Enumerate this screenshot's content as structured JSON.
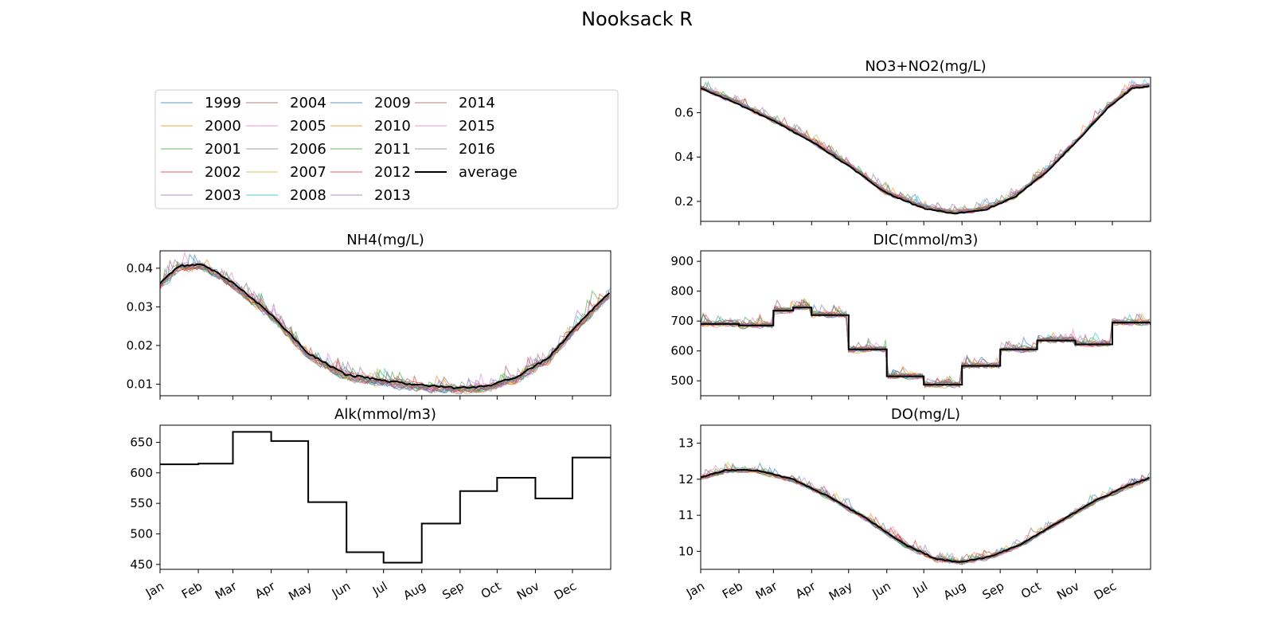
{
  "figure": {
    "title": "Nooksack R"
  },
  "legend": {
    "entries": [
      "1999",
      "2000",
      "2001",
      "2002",
      "2003",
      "2004",
      "2005",
      "2006",
      "2007",
      "2008",
      "2009",
      "2010",
      "2011",
      "2012",
      "2013",
      "2014",
      "2015",
      "2016",
      "average"
    ],
    "colors": [
      "#1f77b4",
      "#ff7f0e",
      "#2ca02c",
      "#d62728",
      "#9467bd",
      "#8c564b",
      "#e377c2",
      "#7f7f7f",
      "#bcbd22",
      "#17becf",
      "#1f77b4",
      "#ff7f0e",
      "#2ca02c",
      "#d62728",
      "#9467bd",
      "#8c564b",
      "#e377c2",
      "#7f7f7f",
      "#000000"
    ],
    "placement": "top-left panel"
  },
  "chart_data": [
    {
      "id": "no3",
      "type": "line",
      "title": "NO3+NO2(mg/L)",
      "xticks": [
        "Jan",
        "Feb",
        "Mar",
        "Apr",
        "May",
        "Jun",
        "Jul",
        "Aug",
        "Sep",
        "Oct",
        "Nov",
        "Dec"
      ],
      "xtick_labels_shown": false,
      "ylim": [
        0.11,
        0.76
      ],
      "yticks": [
        {
          "v": 0.2,
          "label": "0.2"
        },
        {
          "v": 0.4,
          "label": "0.4"
        },
        {
          "v": 0.6,
          "label": "0.6"
        }
      ],
      "average": [
        [
          0,
          0.71
        ],
        [
          30,
          0.64
        ],
        [
          60,
          0.56
        ],
        [
          90,
          0.47
        ],
        [
          120,
          0.36
        ],
        [
          150,
          0.24
        ],
        [
          180,
          0.17
        ],
        [
          205,
          0.145
        ],
        [
          230,
          0.16
        ],
        [
          255,
          0.22
        ],
        [
          280,
          0.33
        ],
        [
          305,
          0.47
        ],
        [
          330,
          0.62
        ],
        [
          350,
          0.71
        ],
        [
          365,
          0.72
        ]
      ],
      "noise": 0.02
    },
    {
      "id": "nh4",
      "type": "line",
      "title": "NH4(mg/L)",
      "xticks": [
        "Jan",
        "Feb",
        "Mar",
        "Apr",
        "May",
        "Jun",
        "Jul",
        "Aug",
        "Sep",
        "Oct",
        "Nov",
        "Dec"
      ],
      "xtick_labels_shown": false,
      "ylim": [
        0.007,
        0.0445
      ],
      "yticks": [
        {
          "v": 0.01,
          "label": "0.01"
        },
        {
          "v": 0.02,
          "label": "0.02"
        },
        {
          "v": 0.03,
          "label": "0.03"
        },
        {
          "v": 0.04,
          "label": "0.04"
        }
      ],
      "average": [
        [
          0,
          0.036
        ],
        [
          15,
          0.0405
        ],
        [
          35,
          0.041
        ],
        [
          60,
          0.036
        ],
        [
          90,
          0.028
        ],
        [
          120,
          0.018
        ],
        [
          150,
          0.0125
        ],
        [
          180,
          0.011
        ],
        [
          210,
          0.0098
        ],
        [
          240,
          0.009
        ],
        [
          265,
          0.0095
        ],
        [
          290,
          0.012
        ],
        [
          315,
          0.017
        ],
        [
          340,
          0.026
        ],
        [
          365,
          0.034
        ]
      ],
      "noise": 0.002
    },
    {
      "id": "dic",
      "type": "line",
      "title": "DIC(mmol/m3)",
      "xticks": [
        "Jan",
        "Feb",
        "Mar",
        "Apr",
        "May",
        "Jun",
        "Jul",
        "Aug",
        "Sep",
        "Oct",
        "Nov",
        "Dec"
      ],
      "xtick_labels_shown": false,
      "ylim": [
        450,
        935
      ],
      "yticks": [
        {
          "v": 500,
          "label": "500"
        },
        {
          "v": 600,
          "label": "600"
        },
        {
          "v": 700,
          "label": "700"
        },
        {
          "v": 800,
          "label": "800"
        },
        {
          "v": 900,
          "label": "900"
        }
      ],
      "steps": [
        [
          0,
          690
        ],
        [
          31,
          685
        ],
        [
          59,
          735
        ],
        [
          75,
          745
        ],
        [
          90,
          720
        ],
        [
          120,
          605
        ],
        [
          151,
          515
        ],
        [
          181,
          487
        ],
        [
          212,
          550
        ],
        [
          243,
          605
        ],
        [
          273,
          635
        ],
        [
          304,
          622
        ],
        [
          334,
          695
        ],
        [
          365,
          688
        ]
      ],
      "noise": 18
    },
    {
      "id": "alk",
      "type": "line",
      "title": "Alk(mmol/m3)",
      "xticks": [
        "Jan",
        "Feb",
        "Mar",
        "Apr",
        "May",
        "Jun",
        "Jul",
        "Aug",
        "Sep",
        "Oct",
        "Nov",
        "Dec"
      ],
      "xtick_labels_shown": true,
      "ylim": [
        442,
        678
      ],
      "yticks": [
        {
          "v": 450,
          "label": "450"
        },
        {
          "v": 500,
          "label": "500"
        },
        {
          "v": 550,
          "label": "550"
        },
        {
          "v": 600,
          "label": "600"
        },
        {
          "v": 650,
          "label": "650"
        }
      ],
      "steps": [
        [
          0,
          614
        ],
        [
          31,
          615
        ],
        [
          59,
          667
        ],
        [
          90,
          652
        ],
        [
          120,
          552
        ],
        [
          151,
          470
        ],
        [
          181,
          453
        ],
        [
          212,
          517
        ],
        [
          243,
          570
        ],
        [
          273,
          592
        ],
        [
          304,
          558
        ],
        [
          334,
          625
        ],
        [
          365,
          625
        ]
      ],
      "noise": 0
    },
    {
      "id": "do",
      "type": "line",
      "title": "DO(mg/L)",
      "xticks": [
        "Jan",
        "Feb",
        "Mar",
        "Apr",
        "May",
        "Jun",
        "Jul",
        "Aug",
        "Sep",
        "Oct",
        "Nov",
        "Dec"
      ],
      "xtick_labels_shown": true,
      "ylim": [
        9.5,
        13.5
      ],
      "yticks": [
        {
          "v": 10,
          "label": "10"
        },
        {
          "v": 11,
          "label": "11"
        },
        {
          "v": 12,
          "label": "12"
        },
        {
          "v": 13,
          "label": "13"
        }
      ],
      "average": [
        [
          0,
          12.05
        ],
        [
          20,
          12.25
        ],
        [
          45,
          12.25
        ],
        [
          75,
          12.0
        ],
        [
          105,
          11.5
        ],
        [
          135,
          10.9
        ],
        [
          165,
          10.2
        ],
        [
          190,
          9.8
        ],
        [
          210,
          9.7
        ],
        [
          235,
          9.85
        ],
        [
          260,
          10.2
        ],
        [
          290,
          10.8
        ],
        [
          320,
          11.4
        ],
        [
          345,
          11.8
        ],
        [
          365,
          12.05
        ]
      ],
      "noise": 0.12
    }
  ]
}
